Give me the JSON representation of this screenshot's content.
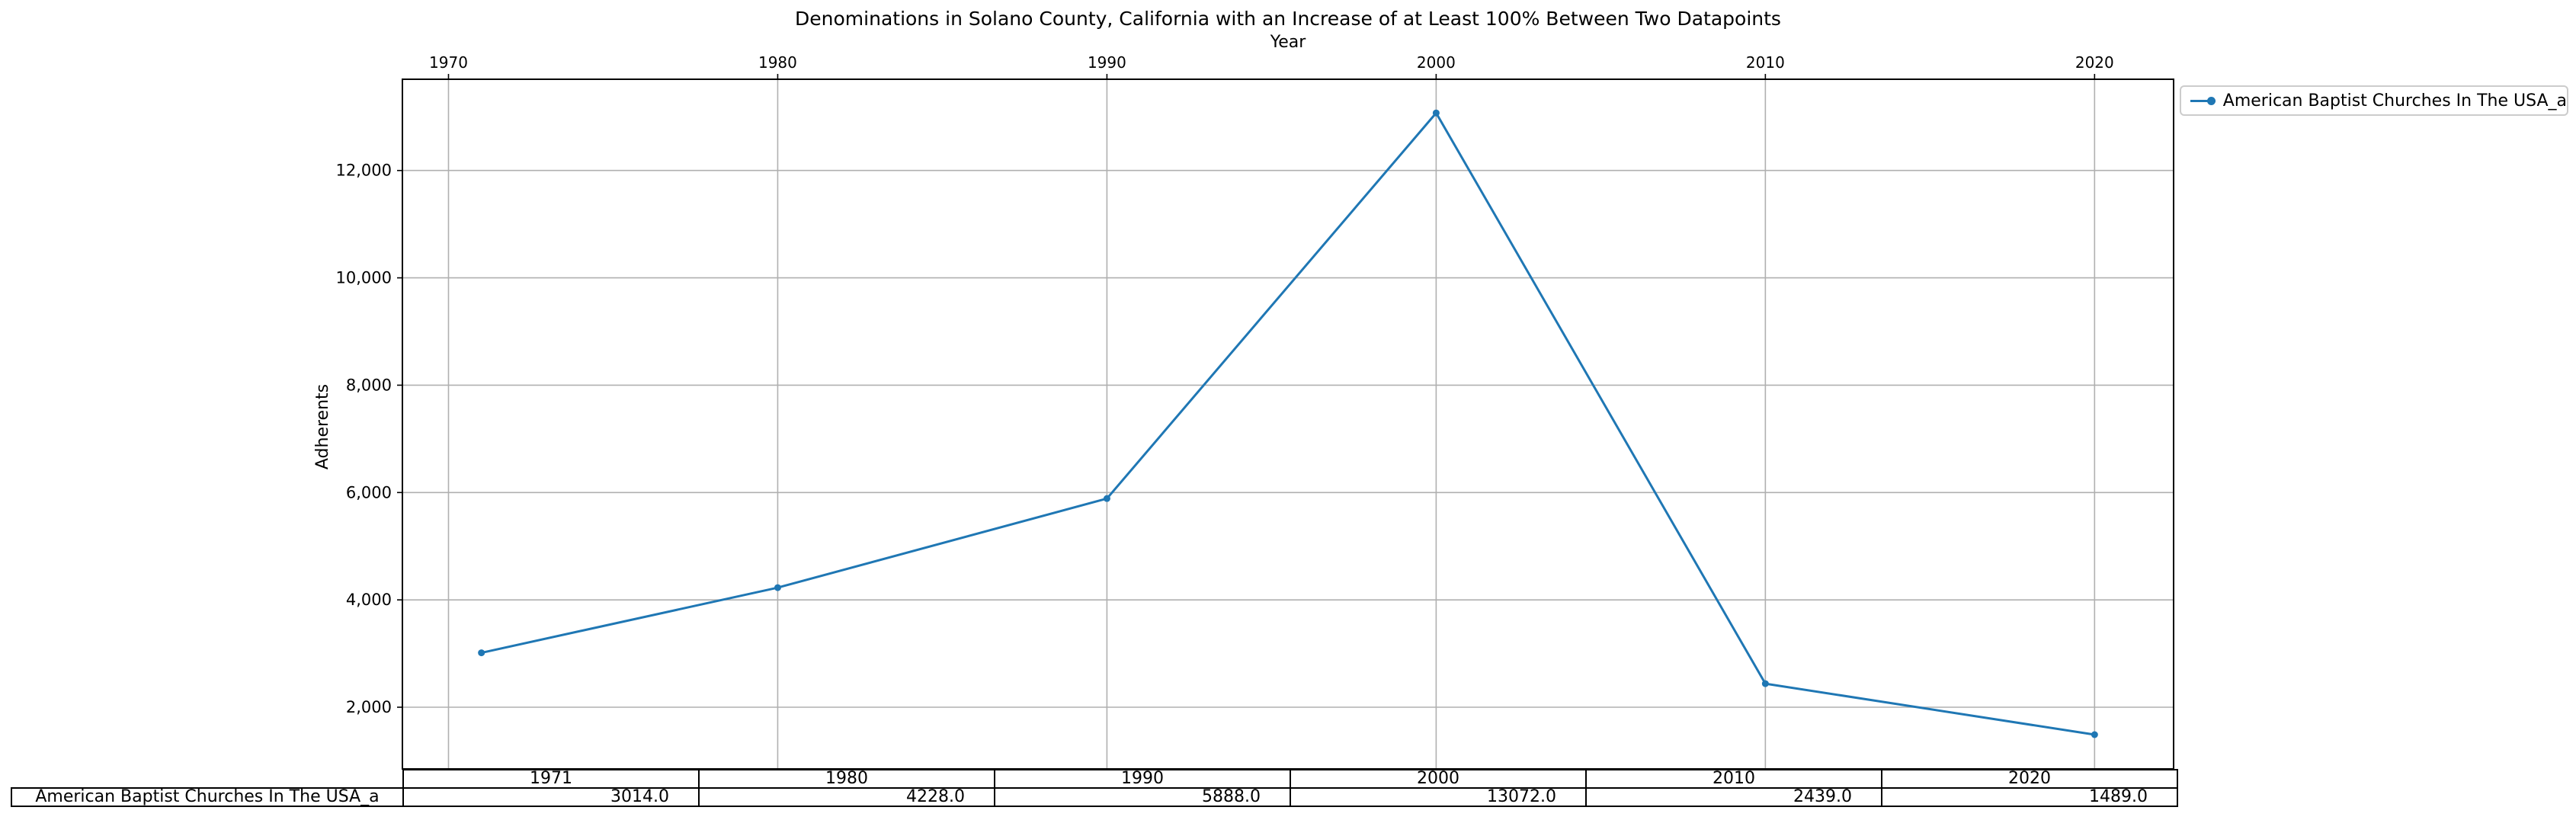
{
  "chart_data": {
    "type": "line",
    "title": "Denominations in Solano County, California with an Increase of at Least 100% Between Two Datapoints",
    "xlabel": "Year",
    "ylabel": "Adherents",
    "x_ticks": [
      "1970",
      "1980",
      "1990",
      "2000",
      "2010",
      "2020"
    ],
    "y_ticks": [
      "2,000",
      "4,000",
      "6,000",
      "8,000",
      "10,000",
      "12,000"
    ],
    "x": [
      1971,
      1980,
      1990,
      2000,
      2010,
      2020
    ],
    "series": [
      {
        "name": "American Baptist Churches In The USA_a",
        "values": [
          3014,
          4228,
          5888,
          13072,
          2439,
          1489
        ]
      }
    ],
    "xlim": [
      1968.6,
      2022.4
    ],
    "ylim": [
      850,
      13700
    ],
    "grid": true,
    "legend_position": "outside-top-right",
    "table": {
      "columns": [
        "1971",
        "1980",
        "1990",
        "2000",
        "2010",
        "2020"
      ],
      "rows": [
        {
          "label": "American Baptist Churches In The USA_a",
          "cells": [
            "3014.0",
            "4228.0",
            "5888.0",
            "13072.0",
            "2439.0",
            "1489.0"
          ]
        }
      ]
    },
    "color": "#1f77b4"
  }
}
